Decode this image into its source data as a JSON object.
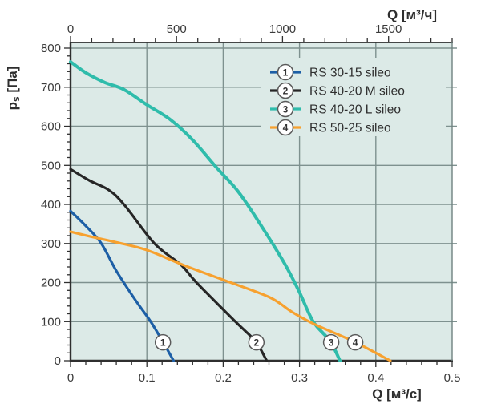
{
  "chart_data": {
    "type": "line",
    "title": "",
    "axes": {
      "bottom": {
        "title": "Q [м³/с]",
        "min": 0,
        "max": 0.5,
        "major_step": 0.1,
        "minor_step": 0.02,
        "tick_labels": [
          "0",
          "0.1",
          "0.2",
          "0.3",
          "0.4",
          "0.5"
        ]
      },
      "top": {
        "title": "Q [м³/ч]",
        "min": 0,
        "max": 1800,
        "major_values": [
          0,
          500,
          1000,
          1500
        ],
        "minor_step": 100,
        "tick_labels": [
          "0",
          "500",
          "1000",
          "1500"
        ]
      },
      "left": {
        "title_plain": "ps [Па]",
        "title_parts": {
          "base": "p",
          "sub": "s",
          "rest": " [Па]"
        },
        "min": 0,
        "max": 800,
        "major_step": 100,
        "minor_step": 20,
        "tick_labels": [
          "800",
          "700",
          "600",
          "500",
          "400",
          "300",
          "200",
          "100",
          "0"
        ]
      }
    },
    "grid": {
      "visible": true,
      "h_step_pa": 100,
      "v_step_m3s": 0.1
    },
    "legend": {
      "position": "top-right-inside"
    },
    "series": [
      {
        "num": "1",
        "name": "RS 30-15 sileo",
        "color": "#1d5fa6",
        "points": [
          [
            0,
            383
          ],
          [
            0.02,
            345
          ],
          [
            0.04,
            301
          ],
          [
            0.06,
            230
          ],
          [
            0.085,
            155
          ],
          [
            0.105,
            100
          ],
          [
            0.121,
            48
          ],
          [
            0.135,
            0
          ]
        ],
        "marker": {
          "x": 0.121,
          "y": 47
        }
      },
      {
        "num": "2",
        "name": "RS 40-20 M sileo",
        "color": "#262626",
        "points": [
          [
            0,
            490
          ],
          [
            0.025,
            461
          ],
          [
            0.05,
            437
          ],
          [
            0.07,
            400
          ],
          [
            0.11,
            300
          ],
          [
            0.145,
            245
          ],
          [
            0.165,
            200
          ],
          [
            0.216,
            100
          ],
          [
            0.242,
            50
          ],
          [
            0.257,
            0
          ]
        ],
        "marker": {
          "x": 0.2435,
          "y": 47
        }
      },
      {
        "num": "3",
        "name": "RS 40-20 L sileo",
        "color": "#2fbcab",
        "points": [
          [
            0,
            765
          ],
          [
            0.02,
            737
          ],
          [
            0.045,
            712
          ],
          [
            0.07,
            694
          ],
          [
            0.1,
            655
          ],
          [
            0.13,
            618
          ],
          [
            0.16,
            565
          ],
          [
            0.19,
            497
          ],
          [
            0.22,
            432
          ],
          [
            0.25,
            345
          ],
          [
            0.28,
            250
          ],
          [
            0.3,
            175
          ],
          [
            0.318,
            100
          ],
          [
            0.34,
            50
          ],
          [
            0.353,
            0
          ]
        ],
        "marker": {
          "x": 0.3415,
          "y": 47
        }
      },
      {
        "num": "4",
        "name": "RS 50-25 sileo",
        "color": "#f7a12f",
        "points": [
          [
            0,
            330
          ],
          [
            0.03,
            316
          ],
          [
            0.06,
            303
          ],
          [
            0.1,
            283
          ],
          [
            0.15,
            243
          ],
          [
            0.2,
            207
          ],
          [
            0.26,
            163
          ],
          [
            0.29,
            125
          ],
          [
            0.32,
            93
          ],
          [
            0.37,
            50
          ],
          [
            0.419,
            0
          ]
        ],
        "marker": {
          "x": 0.373,
          "y": 47
        }
      }
    ],
    "colors": {
      "plot_bg": "#dceae7",
      "grid": "#7e918f",
      "axis_dark": "#2f2f2f",
      "border_light": "#6f8280",
      "tick_text": "#3a3a3a",
      "label_text": "#2e2e2e",
      "marker_fill": "#ffffff",
      "marker_border": "#5a5a5a"
    }
  }
}
